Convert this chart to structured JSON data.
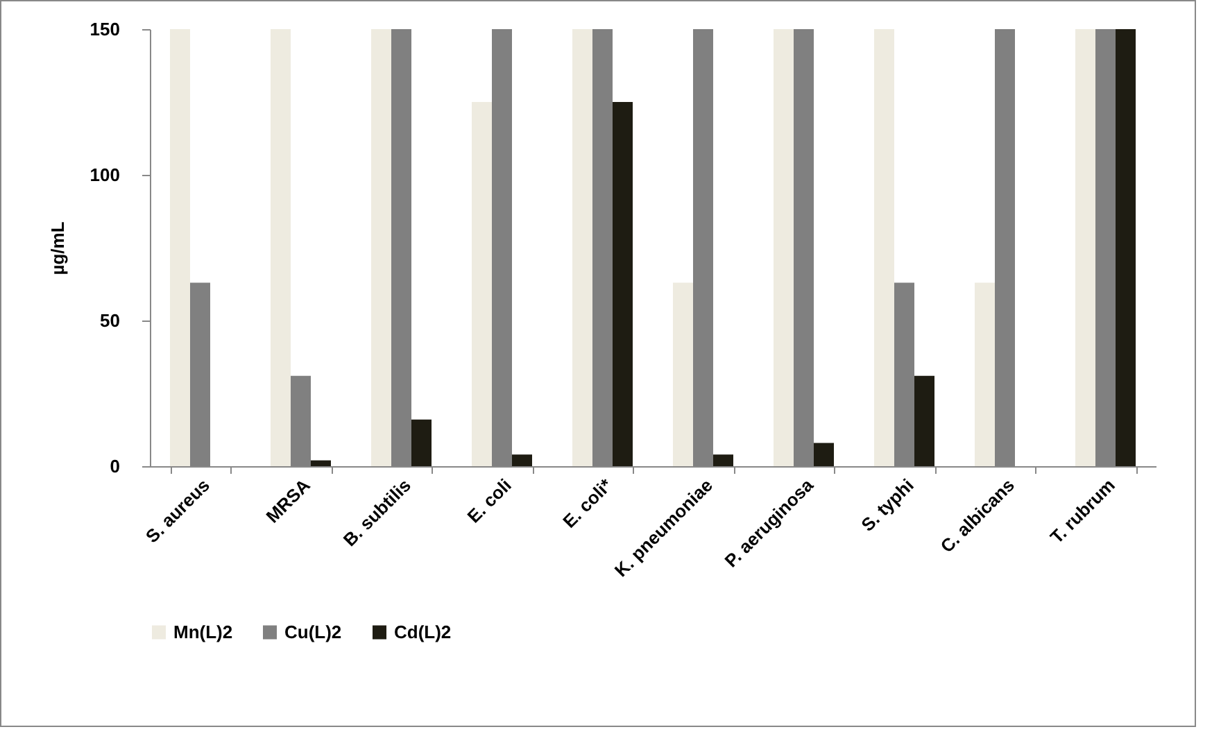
{
  "chart_data": {
    "type": "bar",
    "ylabel": "µg/mL",
    "categories": [
      "S. aureus",
      "MRSA",
      "B. subtilis",
      "E. coli",
      "E. coli*",
      "K. pneumoniae",
      "P. aeruginosa",
      "S. typhi",
      "C. albicans",
      "T. rubrum"
    ],
    "series": [
      {
        "name": "Mn(L)2",
        "color": "#eeebe0",
        "values": [
          150,
          150,
          150,
          125,
          150,
          63,
          150,
          150,
          63,
          150
        ]
      },
      {
        "name": "Cu(L)2",
        "color": "#808080",
        "values": [
          63,
          31,
          150,
          150,
          150,
          150,
          150,
          63,
          150,
          150
        ]
      },
      {
        "name": "Cd(L)2",
        "color": "#1e1c12",
        "values": [
          0,
          2,
          16,
          4,
          125,
          4,
          8,
          31,
          0,
          150
        ]
      }
    ],
    "ylim": [
      0,
      150
    ],
    "yticks": [
      0,
      50,
      100,
      150
    ],
    "grid": false,
    "legend": "bottom"
  }
}
